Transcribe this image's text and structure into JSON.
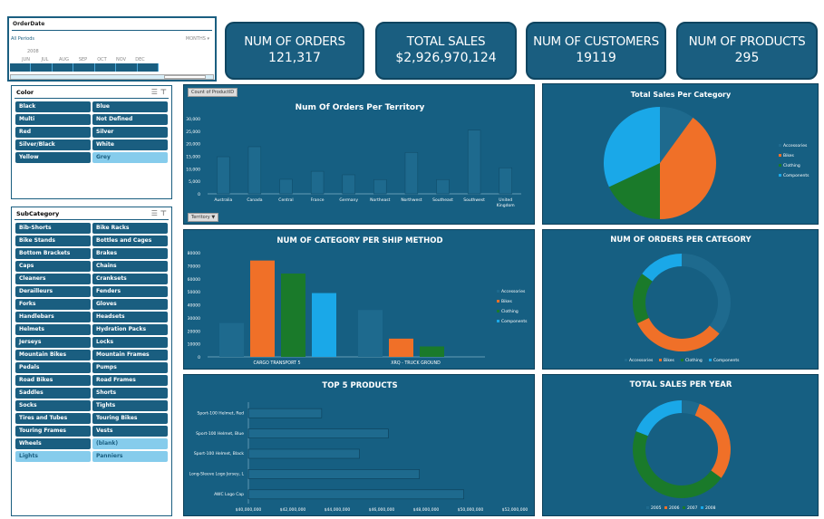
{
  "timeline": {
    "title": "OrderDate",
    "period": "All Periods",
    "level": "MONTHS",
    "year": "2008",
    "months": [
      "JUN",
      "JUL",
      "AUG",
      "SEP",
      "OCT",
      "NOV",
      "DEC"
    ]
  },
  "kpis": [
    {
      "label": "NUM OF ORDERS",
      "value": "121,317"
    },
    {
      "label": "TOTAL SALES",
      "value": "$2,926,970,124"
    },
    {
      "label": "NUM OF CUSTOMERS",
      "value": "19119"
    },
    {
      "label": "NUM OF PRODUCTS",
      "value": "295"
    }
  ],
  "color_slicer": {
    "title": "Color",
    "items": [
      {
        "label": "Black",
        "selected": true
      },
      {
        "label": "Blue",
        "selected": true
      },
      {
        "label": "Multi",
        "selected": true
      },
      {
        "label": "Not Defined",
        "selected": true
      },
      {
        "label": "Red",
        "selected": true
      },
      {
        "label": "Silver",
        "selected": true
      },
      {
        "label": "Silver/Black",
        "selected": true
      },
      {
        "label": "White",
        "selected": true
      },
      {
        "label": "Yellow",
        "selected": true
      },
      {
        "label": "Grey",
        "selected": false
      }
    ]
  },
  "subcategory_slicer": {
    "title": "SubCategory",
    "items": [
      {
        "label": "Bib-Shorts",
        "selected": true
      },
      {
        "label": "Bike Racks",
        "selected": true
      },
      {
        "label": "Bike Stands",
        "selected": true
      },
      {
        "label": "Bottles and Cages",
        "selected": true
      },
      {
        "label": "Bottom Brackets",
        "selected": true
      },
      {
        "label": "Brakes",
        "selected": true
      },
      {
        "label": "Caps",
        "selected": true
      },
      {
        "label": "Chains",
        "selected": true
      },
      {
        "label": "Cleaners",
        "selected": true
      },
      {
        "label": "Cranksets",
        "selected": true
      },
      {
        "label": "Derailleurs",
        "selected": true
      },
      {
        "label": "Fenders",
        "selected": true
      },
      {
        "label": "Forks",
        "selected": true
      },
      {
        "label": "Gloves",
        "selected": true
      },
      {
        "label": "Handlebars",
        "selected": true
      },
      {
        "label": "Headsets",
        "selected": true
      },
      {
        "label": "Helmets",
        "selected": true
      },
      {
        "label": "Hydration Packs",
        "selected": true
      },
      {
        "label": "Jerseys",
        "selected": true
      },
      {
        "label": "Locks",
        "selected": true
      },
      {
        "label": "Mountain Bikes",
        "selected": true
      },
      {
        "label": "Mountain Frames",
        "selected": true
      },
      {
        "label": "Pedals",
        "selected": true
      },
      {
        "label": "Pumps",
        "selected": true
      },
      {
        "label": "Road Bikes",
        "selected": true
      },
      {
        "label": "Road Frames",
        "selected": true
      },
      {
        "label": "Saddles",
        "selected": true
      },
      {
        "label": "Shorts",
        "selected": true
      },
      {
        "label": "Socks",
        "selected": true
      },
      {
        "label": "Tights",
        "selected": true
      },
      {
        "label": "Tires and Tubes",
        "selected": true
      },
      {
        "label": "Touring Bikes",
        "selected": true
      },
      {
        "label": "Touring Frames",
        "selected": true
      },
      {
        "label": "Vests",
        "selected": true
      },
      {
        "label": "Wheels",
        "selected": true
      },
      {
        "label": "(blank)",
        "selected": false
      },
      {
        "label": "Lights",
        "selected": false
      },
      {
        "label": "Panniers",
        "selected": false
      }
    ]
  },
  "colors": {
    "Accessories": "#1e6a8e",
    "Bikes": "#f07028",
    "Clothing": "#1a7a2a",
    "Components": "#1aa8e8",
    "2005": "#1e6a8e",
    "2006": "#f07028",
    "2007": "#1a7a2a",
    "2008": "#1aa8e8"
  },
  "chart_data": [
    {
      "type": "bar",
      "title": "Num Of Orders Per Territory",
      "field_button": "Count of ProductID",
      "axis_button": "Territory",
      "categories": [
        "Australia",
        "Canada",
        "Central",
        "France",
        "Germany",
        "Northeast",
        "Northwest",
        "Southeast",
        "Southwest",
        "United Kingdom"
      ],
      "values": [
        14800,
        18800,
        5800,
        9000,
        7600,
        5700,
        16500,
        5700,
        25400,
        10400
      ],
      "ylim": [
        0,
        30000
      ],
      "yticks": [
        "0",
        "5,000",
        "10,000",
        "15,000",
        "20,000",
        "25,000",
        "30,000"
      ]
    },
    {
      "type": "bar",
      "title": "NUM OF CATEGORY PER SHIP METHOD",
      "categories": [
        "CARGO TRANSPORT 5",
        "XRQ - TRUCK GROUND"
      ],
      "series": [
        {
          "name": "Accessories",
          "values": [
            26000,
            36000
          ]
        },
        {
          "name": "Bikes",
          "values": [
            74000,
            14000
          ]
        },
        {
          "name": "Clothing",
          "values": [
            64000,
            8000
          ]
        },
        {
          "name": "Components",
          "values": [
            49000,
            0
          ]
        }
      ],
      "ylim": [
        0,
        80000
      ],
      "yticks": [
        "0",
        "10000",
        "20000",
        "30000",
        "40000",
        "50000",
        "60000",
        "70000",
        "80000"
      ],
      "legend": "right"
    },
    {
      "type": "bar",
      "orientation": "horizontal",
      "title": "TOP 5 PRODUCTS",
      "categories": [
        "Sport-100 Helmet, Red",
        "Sport-100 Helmet, Blue",
        "Sport-100 Helmet, Black",
        "Long-Sleeve Logo Jersey, L",
        "AWC Logo Cap"
      ],
      "values": [
        43300000,
        46300000,
        45000000,
        47700000,
        49700000
      ],
      "xlim": [
        40000000,
        52000000
      ],
      "xticks": [
        "$40,000,000",
        "$42,000,000",
        "$44,000,000",
        "$46,000,000",
        "$48,000,000",
        "$50,000,000",
        "$52,000,000"
      ]
    },
    {
      "type": "pie",
      "title": "Total Sales Per Category",
      "categories": [
        "Accessories",
        "Bikes",
        "Clothing",
        "Components"
      ],
      "values": [
        10,
        40,
        18,
        32
      ],
      "legend": "right"
    },
    {
      "type": "pie",
      "donut": true,
      "title": "NUM OF ORDERS PER CATEGORY",
      "categories": [
        "Accessories",
        "Bikes",
        "Clothing",
        "Components"
      ],
      "values": [
        36,
        32,
        17,
        15
      ],
      "legend": "bottom"
    },
    {
      "type": "pie",
      "donut": true,
      "title": "TOTAL SALES PER YEAR",
      "categories": [
        "2005",
        "2006",
        "2007",
        "2008"
      ],
      "values": [
        6,
        29,
        46,
        19
      ],
      "legend": "bottom"
    }
  ]
}
